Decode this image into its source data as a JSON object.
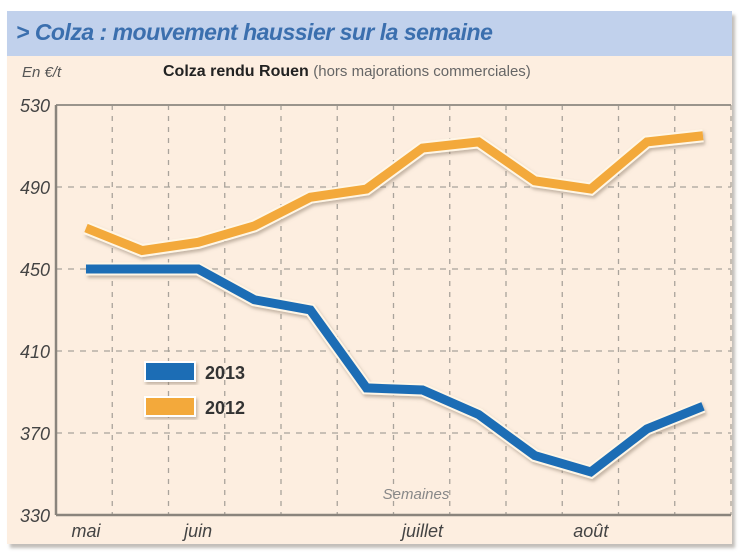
{
  "header": {
    "title": "> Colza : mouvement haussier sur la semaine"
  },
  "chart_data": {
    "type": "line",
    "title": "Colza rendu Rouen",
    "subtitle": "(hors majorations commerciales)",
    "ylabel": "En €/t",
    "xlabel": "Semaines",
    "ylim": [
      330,
      530
    ],
    "yticks": [
      530,
      490,
      450,
      410,
      370,
      330
    ],
    "ytick_labels": [
      "530",
      "490",
      "450",
      "410",
      "370",
      "330"
    ],
    "x": [
      1,
      2,
      3,
      4,
      5,
      6,
      7,
      8,
      9,
      10,
      11,
      12
    ],
    "xlim": [
      0.5,
      12.5
    ],
    "month_labels": [
      {
        "label": "mai",
        "x": 1
      },
      {
        "label": "juin",
        "x": 3
      },
      {
        "label": "juillet",
        "x": 7
      },
      {
        "label": "août",
        "x": 10
      }
    ],
    "grid": true,
    "legend_position": "center-left",
    "series": [
      {
        "name": "2013",
        "color": "#1f6db5",
        "values": [
          450,
          450,
          450,
          435,
          430,
          392,
          391,
          379,
          359,
          351,
          372,
          383
        ]
      },
      {
        "name": "2012",
        "color": "#f3a93a",
        "values": [
          470,
          459,
          463,
          471,
          485,
          489,
          509,
          512,
          493,
          489,
          512,
          515
        ]
      }
    ]
  },
  "colors": {
    "header_bg": "#c1d1ec",
    "header_text": "#3b6fae",
    "panel_bg": "#fdeee0"
  }
}
